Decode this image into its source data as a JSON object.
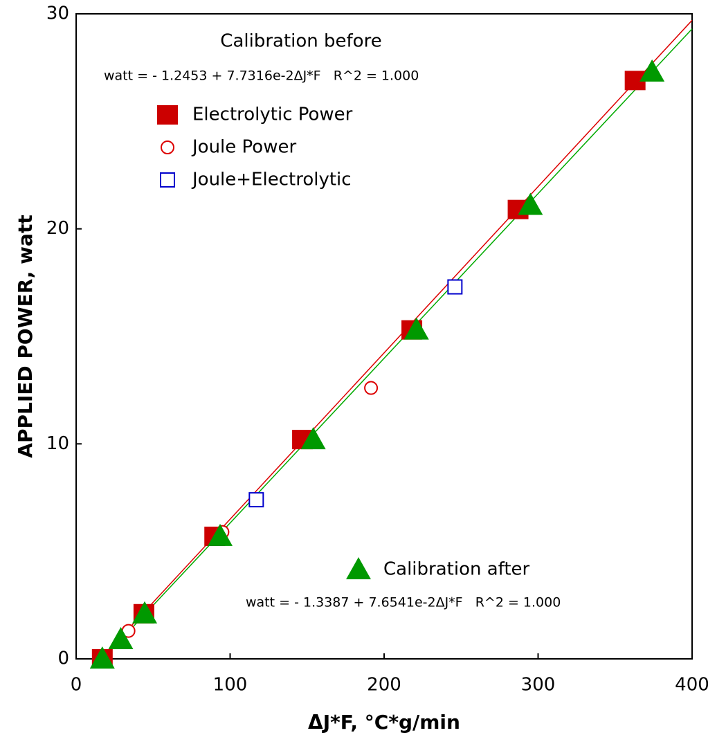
{
  "chart_data": {
    "type": "scatter",
    "xlabel": "ΔJ*F, °C*g/min",
    "ylabel": "APPLIED POWER, watt",
    "xlim": [
      0,
      400
    ],
    "ylim": [
      0,
      30
    ],
    "xticks": [
      0,
      100,
      200,
      300,
      400
    ],
    "yticks": [
      0,
      10,
      20,
      30
    ],
    "annotations": [
      "Calibration before",
      "watt = - 1.2453 + 7.7316e-2ΔJ*F   R^2 = 1.000",
      "watt = - 1.3387 + 7.6541e-2ΔJ*F   R^2 = 1.000"
    ],
    "series": [
      {
        "name": "Electrolytic Power",
        "color": "#cc0000",
        "marker": "filled-square",
        "x": [
          17,
          44,
          90,
          147,
          218,
          287,
          363
        ],
        "values": [
          0,
          2.1,
          5.7,
          10.2,
          15.3,
          20.9,
          26.9
        ]
      },
      {
        "name": "Joule Power",
        "color": "#dd0000",
        "marker": "open-circle",
        "x": [
          34,
          95,
          191.5
        ],
        "values": [
          1.3,
          5.9,
          12.6
        ]
      },
      {
        "name": "Joule+Electrolytic",
        "color": "#0000cc",
        "marker": "open-square",
        "x": [
          117,
          246
        ],
        "values": [
          7.4,
          17.3
        ]
      },
      {
        "name": "Calibration after",
        "color": "#009900",
        "marker": "filled-triangle",
        "x": [
          17,
          29,
          44.5,
          93.5,
          154,
          221,
          295,
          374
        ],
        "values": [
          0,
          0.9,
          2.1,
          5.7,
          10.2,
          15.3,
          21.1,
          27.3
        ]
      }
    ],
    "fit_lines": [
      {
        "color": "#dd0000",
        "x": [
          16,
          400
        ],
        "values": [
          0,
          29.7
        ]
      },
      {
        "color": "#00aa00",
        "x": [
          17.5,
          400
        ],
        "values": [
          0,
          29.3
        ]
      }
    ]
  }
}
